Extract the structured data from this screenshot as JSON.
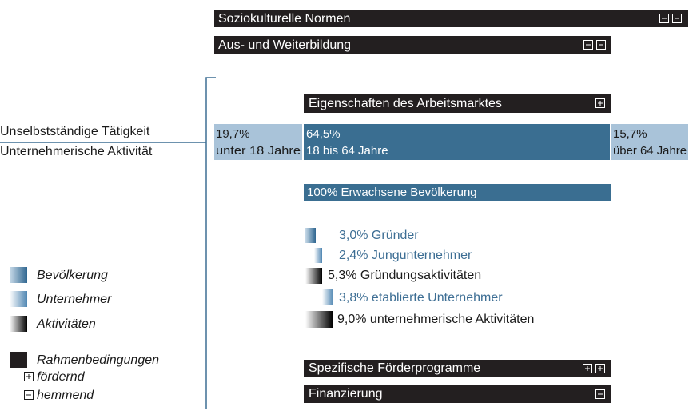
{
  "bars": [
    "Soziokulturelle Normen",
    "Aus- und Weiterbildung",
    "Eigenschaften des Arbeitsmarktes",
    "Spezifische Förderprogramme",
    "Finanzierung"
  ],
  "left_labels": [
    "Unselbstständige Tätigkeit",
    "Unternehmerische Aktivität"
  ],
  "age_groups": [
    {
      "share": "19,7%",
      "label": "unter 18 Jahre"
    },
    {
      "share": "64,5%",
      "label": "18 bis 64 Jahre"
    },
    {
      "share": "15,7%",
      "label": "über 64 Jahre"
    }
  ],
  "population_bar": "100% Erwachsene Bevölkerung",
  "indicators": [
    "3,0% Gründer",
    "2,4% Jungunternehmer",
    "5,3% Gründungsaktivitäten",
    "3,8% etablierte Unternehmer",
    "9,0% unternehmerische Aktivitäten"
  ],
  "legend": {
    "items": [
      "Bevölkerung",
      "Unternehmer",
      "Aktivitäten"
    ],
    "conditions": "Rahmenbedingungen",
    "positive": "fördernd",
    "negative": "hemmend"
  }
}
